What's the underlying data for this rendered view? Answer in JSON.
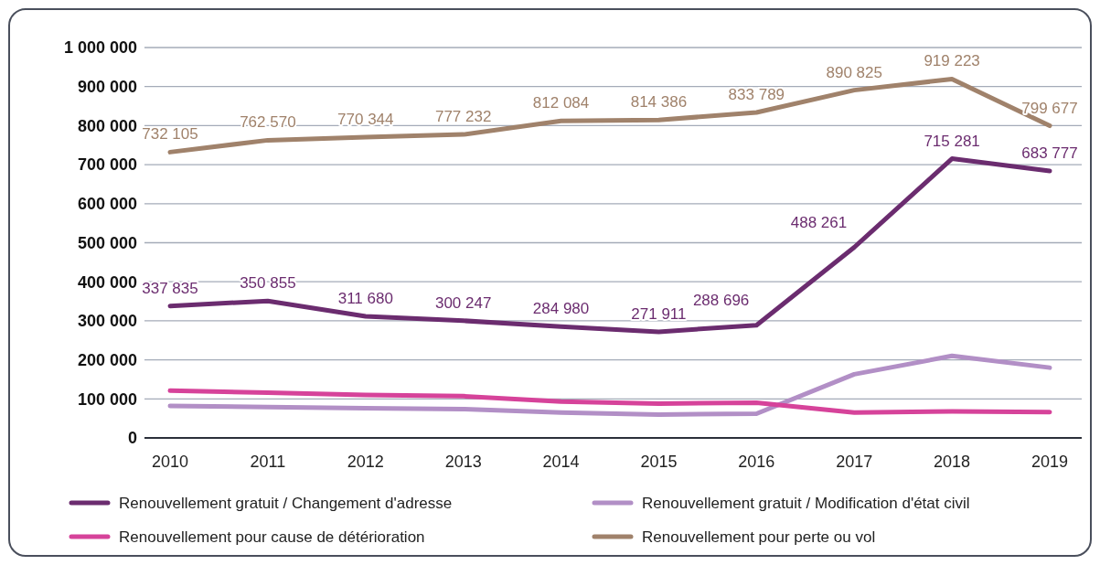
{
  "chart_data": {
    "type": "line",
    "categories": [
      "2010",
      "2011",
      "2012",
      "2013",
      "2014",
      "2015",
      "2016",
      "2017",
      "2018",
      "2019"
    ],
    "ylim": [
      0,
      1000000
    ],
    "yticks": [
      {
        "value": 0,
        "label": "0"
      },
      {
        "value": 100000,
        "label": "100 000"
      },
      {
        "value": 200000,
        "label": "200 000"
      },
      {
        "value": 300000,
        "label": "300 000"
      },
      {
        "value": 400000,
        "label": "400 000"
      },
      {
        "value": 500000,
        "label": "500 000"
      },
      {
        "value": 600000,
        "label": "600 000"
      },
      {
        "value": 700000,
        "label": "700 000"
      },
      {
        "value": 800000,
        "label": "800 000"
      },
      {
        "value": 900000,
        "label": "900 000"
      },
      {
        "value": 1000000,
        "label": "1 000 000"
      }
    ],
    "grid": "y",
    "legend": "bottom",
    "marker": "none",
    "line_style": "solid",
    "series": [
      {
        "name": "Renouvellement gratuit / Changement d'adresse",
        "color": "#6b2c6f",
        "values": [
          337835,
          350855,
          311680,
          300247,
          284980,
          271911,
          288696,
          488261,
          715281,
          683777
        ],
        "value_labels": [
          "337 835",
          "350 855",
          "311 680",
          "300 247",
          "284 980",
          "271 911",
          "288 696",
          "488 261",
          "715 281",
          "683 777"
        ]
      },
      {
        "name": "Renouvellement gratuit / Modification d'état civil",
        "color": "#b28fc6",
        "values": [
          82000,
          79000,
          76000,
          74000,
          65000,
          60000,
          62000,
          163000,
          210000,
          180000
        ]
      },
      {
        "name": "Renouvellement pour cause de détérioration",
        "color": "#d6439a",
        "values": [
          121000,
          116000,
          110000,
          107000,
          93000,
          88000,
          90000,
          65000,
          68000,
          66000
        ]
      },
      {
        "name": "Renouvellement pour perte ou vol",
        "color": "#a0826b",
        "values": [
          732105,
          762570,
          770344,
          777232,
          812084,
          814386,
          833789,
          890825,
          919223,
          799677
        ],
        "value_labels": [
          "732 105",
          "762 570",
          "770 344",
          "777 232",
          "812 084",
          "814 386",
          "833 789",
          "890 825",
          "919 223",
          "799 677"
        ]
      }
    ]
  }
}
